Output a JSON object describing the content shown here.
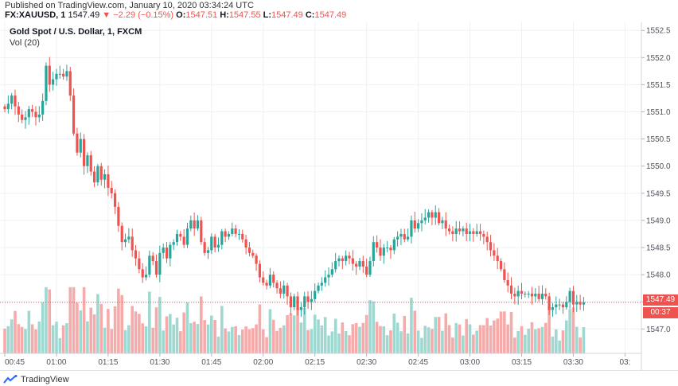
{
  "header": {
    "published": "Published on TradingView.com, January 10, 2020 03:34:24 UTC",
    "symbol": "FX:XAUUSD, 1",
    "last": "1547.49",
    "change": "▼ −2.29 (−0.15%)",
    "o_label": "O:",
    "o_value": "1547.51",
    "h_label": "H:",
    "h_value": "1547.55",
    "l_label": "L:",
    "l_value": "1547.49",
    "c_label": "C:",
    "c_value": "1547.49"
  },
  "legend": {
    "title": "Gold Spot / U.S. Dollar, 1, FXCM",
    "volume": "Vol (20)"
  },
  "price_tag": "1547.49",
  "countdown": "00:37",
  "footer": {
    "brand": "TradingView"
  },
  "colors": {
    "up": "#26a69a",
    "down": "#ef5350",
    "vol_up": "#9fd8d1",
    "vol_down": "#f6aaaa",
    "grid": "#eef0f4",
    "last_line": "#ef5350"
  },
  "chart_data": {
    "type": "candlestick",
    "title": "Gold Spot / U.S. Dollar, 1, FXCM",
    "ylim": [
      1546.55,
      1552.65
    ],
    "y_ticks": [
      1547.0,
      1547.5,
      1548.0,
      1548.5,
      1549.0,
      1549.5,
      1550.0,
      1550.5,
      1551.0,
      1551.5,
      1552.0,
      1552.5
    ],
    "y_tick_labels": [
      "1547.0",
      "1547.5",
      "1548.0",
      "1548.5",
      "1549.0",
      "1549.5",
      "1550.0",
      "1550.5",
      "1551.0",
      "1551.5",
      "1552.0",
      "1552.5"
    ],
    "x_ticks": [
      {
        "bar": 0,
        "label": "00:45"
      },
      {
        "bar": 15,
        "label": "01:00"
      },
      {
        "bar": 30,
        "label": "01:15"
      },
      {
        "bar": 45,
        "label": "01:30"
      },
      {
        "bar": 60,
        "label": "01:45"
      },
      {
        "bar": 75,
        "label": "02:00"
      },
      {
        "bar": 90,
        "label": "02:15"
      },
      {
        "bar": 105,
        "label": "02:30"
      },
      {
        "bar": 120,
        "label": "02:45"
      },
      {
        "bar": 135,
        "label": "03:00"
      },
      {
        "bar": 150,
        "label": "03:15"
      },
      {
        "bar": 165,
        "label": "03:30"
      },
      {
        "bar": 180,
        "label": "03:"
      }
    ],
    "last_price": 1547.49,
    "series_close": [
      1551.05,
      1551.15,
      1551.3,
      1551.1,
      1550.95,
      1550.85,
      1550.9,
      1551.05,
      1551.0,
      1550.9,
      1550.95,
      1551.2,
      1551.85,
      1551.5,
      1551.6,
      1551.7,
      1551.7,
      1551.65,
      1551.75,
      1551.3,
      1550.6,
      1550.25,
      1550.5,
      1550.0,
      1550.2,
      1549.9,
      1549.7,
      1550.0,
      1549.75,
      1549.85,
      1549.6,
      1549.5,
      1549.25,
      1548.9,
      1548.6,
      1548.65,
      1548.7,
      1548.45,
      1548.3,
      1548.1,
      1547.95,
      1548.0,
      1548.35,
      1548.25,
      1548.0,
      1548.4,
      1548.5,
      1548.3,
      1548.55,
      1548.6,
      1548.75,
      1548.7,
      1548.55,
      1548.85,
      1549.0,
      1548.85,
      1549.0,
      1548.6,
      1548.4,
      1548.45,
      1548.7,
      1548.5,
      1548.55,
      1548.8,
      1548.7,
      1548.75,
      1548.85,
      1548.75,
      1548.75,
      1548.65,
      1548.5,
      1548.4,
      1548.35,
      1548.2,
      1547.95,
      1547.85,
      1547.8,
      1548.0,
      1547.85,
      1547.75,
      1547.65,
      1547.8,
      1547.6,
      1547.4,
      1547.6,
      1547.35,
      1547.4,
      1547.6,
      1547.5,
      1547.55,
      1547.7,
      1547.8,
      1547.85,
      1547.95,
      1548.0,
      1548.1,
      1548.25,
      1548.3,
      1548.25,
      1548.35,
      1548.3,
      1548.2,
      1548.15,
      1548.25,
      1548.15,
      1548.0,
      1548.25,
      1548.6,
      1548.5,
      1548.35,
      1548.5,
      1548.5,
      1548.45,
      1548.65,
      1548.7,
      1548.75,
      1548.65,
      1548.7,
      1549.0,
      1548.85,
      1548.95,
      1549.0,
      1549.05,
      1549.15,
      1549.05,
      1549.15,
      1548.95,
      1549.0,
      1548.85,
      1548.8,
      1548.75,
      1548.85,
      1548.8,
      1548.85,
      1548.75,
      1548.8,
      1548.75,
      1548.8,
      1548.75,
      1548.7,
      1548.6,
      1548.45,
      1548.35,
      1548.25,
      1548.1,
      1547.9,
      1547.8,
      1547.65,
      1547.6,
      1547.7,
      1547.65,
      1547.65,
      1547.65,
      1547.6,
      1547.65,
      1547.55,
      1547.65,
      1547.6,
      1547.35,
      1547.4,
      1547.45,
      1547.45,
      1547.4,
      1547.5,
      1547.7,
      1547.45,
      1547.5,
      1547.45,
      1547.49
    ],
    "volume_ylim": [
      0,
      1
    ]
  }
}
